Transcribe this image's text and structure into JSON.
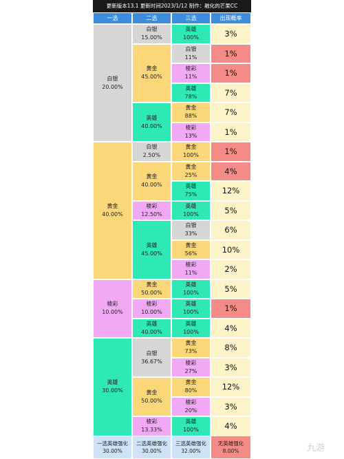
{
  "title": "更新版本13.1  更新时间2023/1/12  制作：融化的芒果CC",
  "headers": [
    "一选",
    "二选",
    "三选",
    "出现概率"
  ],
  "colors": {
    "header": "#3c8de0",
    "silver": "#d6d6d6",
    "gold": "#fcd77a",
    "prism": "#f1a9f5",
    "hero": "#2ee8b6",
    "prob_red": "#f48b86",
    "prob_cream": "#fdf3c9",
    "foot_blue": "#cfe2f7",
    "foot_red": "#f48b86"
  },
  "pick1": [
    {
      "name": "白银",
      "pct": "20.00%",
      "tier": "silver"
    },
    {
      "name": "黄金",
      "pct": "40.00%",
      "tier": "gold"
    },
    {
      "name": "棱彩",
      "pct": "10.00%",
      "tier": "prism"
    },
    {
      "name": "英雄",
      "pct": "30.00%",
      "tier": "hero"
    }
  ],
  "pick2": [
    {
      "name": "白银",
      "pct": "15.00%",
      "tier": "silver"
    },
    {
      "name": "黄金",
      "pct": "45.00%",
      "tier": "gold"
    },
    {
      "name": "英雄",
      "pct": "40.00%",
      "tier": "hero"
    },
    {
      "name": "白银",
      "pct": "2.50%",
      "tier": "silver"
    },
    {
      "name": "黄金",
      "pct": "40.00%",
      "tier": "gold"
    },
    {
      "name": "棱彩",
      "pct": "12.50%",
      "tier": "prism"
    },
    {
      "name": "英雄",
      "pct": "45.00%",
      "tier": "hero"
    },
    {
      "name": "黄金",
      "pct": "50.00%",
      "tier": "gold"
    },
    {
      "name": "棱彩",
      "pct": "10.00%",
      "tier": "prism"
    },
    {
      "name": "英雄",
      "pct": "40.00%",
      "tier": "hero"
    },
    {
      "name": "白银",
      "pct": "36.67%",
      "tier": "silver"
    },
    {
      "name": "黄金",
      "pct": "50.00%",
      "tier": "gold"
    },
    {
      "name": "棱彩",
      "pct": "13.33%",
      "tier": "prism"
    }
  ],
  "pick3": [
    {
      "name": "英雄",
      "pct": "100%",
      "tier": "hero",
      "prob": "3%",
      "hl": "cream"
    },
    {
      "name": "白银",
      "pct": "11%",
      "tier": "silver",
      "prob": "1%",
      "hl": "red"
    },
    {
      "name": "棱彩",
      "pct": "11%",
      "tier": "prism",
      "prob": "1%",
      "hl": "red"
    },
    {
      "name": "英雄",
      "pct": "78%",
      "tier": "hero",
      "prob": "7%",
      "hl": "cream"
    },
    {
      "name": "黄金",
      "pct": "88%",
      "tier": "gold",
      "prob": "7%",
      "hl": "cream"
    },
    {
      "name": "棱彩",
      "pct": "13%",
      "tier": "prism",
      "prob": "1%",
      "hl": "cream"
    },
    {
      "name": "黄金",
      "pct": "100%",
      "tier": "gold",
      "prob": "1%",
      "hl": "red"
    },
    {
      "name": "黄金",
      "pct": "25%",
      "tier": "gold",
      "prob": "4%",
      "hl": "red"
    },
    {
      "name": "英雄",
      "pct": "75%",
      "tier": "hero",
      "prob": "12%",
      "hl": "cream"
    },
    {
      "name": "英雄",
      "pct": "100%",
      "tier": "hero",
      "prob": "5%",
      "hl": "cream"
    },
    {
      "name": "白银",
      "pct": "33%",
      "tier": "silver",
      "prob": "6%",
      "hl": "cream"
    },
    {
      "name": "黄金",
      "pct": "56%",
      "tier": "gold",
      "prob": "10%",
      "hl": "cream"
    },
    {
      "name": "棱彩",
      "pct": "11%",
      "tier": "prism",
      "prob": "2%",
      "hl": "cream"
    },
    {
      "name": "英雄",
      "pct": "100%",
      "tier": "hero",
      "prob": "5%",
      "hl": "cream"
    },
    {
      "name": "英雄",
      "pct": "100%",
      "tier": "hero",
      "prob": "1%",
      "hl": "red"
    },
    {
      "name": "英雄",
      "pct": "100%",
      "tier": "hero",
      "prob": "4%",
      "hl": "cream"
    },
    {
      "name": "黄金",
      "pct": "73%",
      "tier": "gold",
      "prob": "8%",
      "hl": "cream"
    },
    {
      "name": "棱彩",
      "pct": "27%",
      "tier": "prism",
      "prob": "3%",
      "hl": "cream"
    },
    {
      "name": "黄金",
      "pct": "80%",
      "tier": "gold",
      "prob": "12%",
      "hl": "cream"
    },
    {
      "name": "棱彩",
      "pct": "20%",
      "tier": "prism",
      "prob": "3%",
      "hl": "cream"
    },
    {
      "name": "英雄",
      "pct": "100%",
      "tier": "hero",
      "prob": "4%",
      "hl": "cream"
    }
  ],
  "footer": [
    {
      "name": "一选英雄强化",
      "pct": "30.00%",
      "tier": "foot_blue"
    },
    {
      "name": "二选英雄强化",
      "pct": "30.00%",
      "tier": "foot_blue"
    },
    {
      "name": "三选英雄强化",
      "pct": "32.00%",
      "tier": "foot_blue"
    },
    {
      "name": "无英雄强化",
      "pct": "8.00%",
      "tier": "foot_red"
    }
  ],
  "watermark": "九游"
}
